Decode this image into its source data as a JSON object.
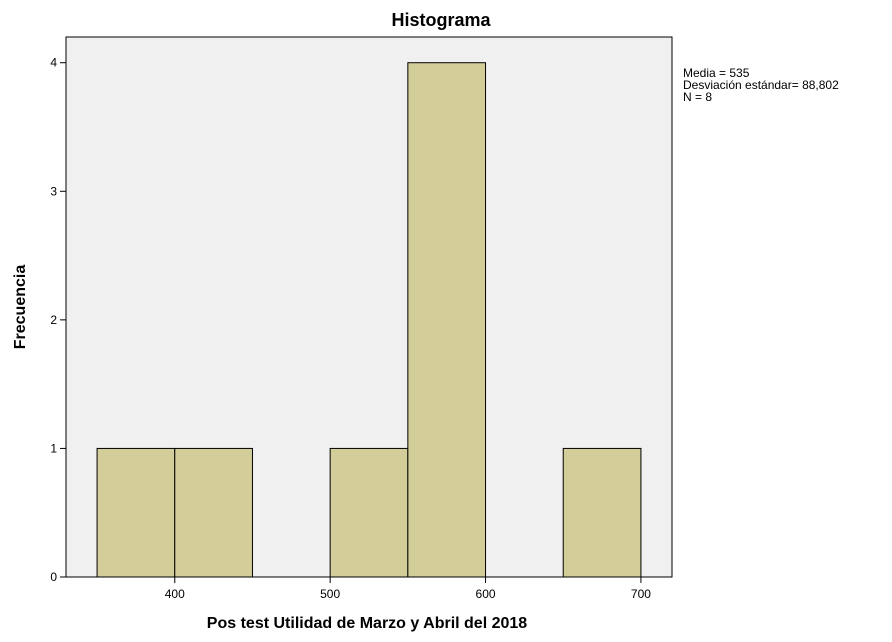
{
  "chart_data": {
    "type": "bar",
    "title": "Histograma",
    "xlabel": "Pos test Utilidad de Marzo y Abril del 2018",
    "ylabel": "Frecuencia",
    "bins": [
      {
        "from": 350,
        "to": 400,
        "count": 1
      },
      {
        "from": 400,
        "to": 450,
        "count": 1
      },
      {
        "from": 450,
        "to": 500,
        "count": 0
      },
      {
        "from": 500,
        "to": 550,
        "count": 1
      },
      {
        "from": 550,
        "to": 600,
        "count": 4
      },
      {
        "from": 600,
        "to": 650,
        "count": 0
      },
      {
        "from": 650,
        "to": 700,
        "count": 1
      }
    ],
    "xlim": [
      330,
      720
    ],
    "ylim": [
      0,
      4.2
    ],
    "x_ticks": [
      400,
      500,
      600,
      700
    ],
    "y_ticks": [
      0,
      1,
      2,
      3,
      4
    ],
    "grid": false,
    "legend": "none",
    "stats": {
      "line1": "Media = 535",
      "line2": "Desviación estándar= 88,802",
      "line3": "N = 8"
    },
    "colors": {
      "bar_fill": "#d3cd9a",
      "bar_stroke": "#000000",
      "plot_background": "#f0f0f0",
      "axis": "#000000"
    }
  }
}
